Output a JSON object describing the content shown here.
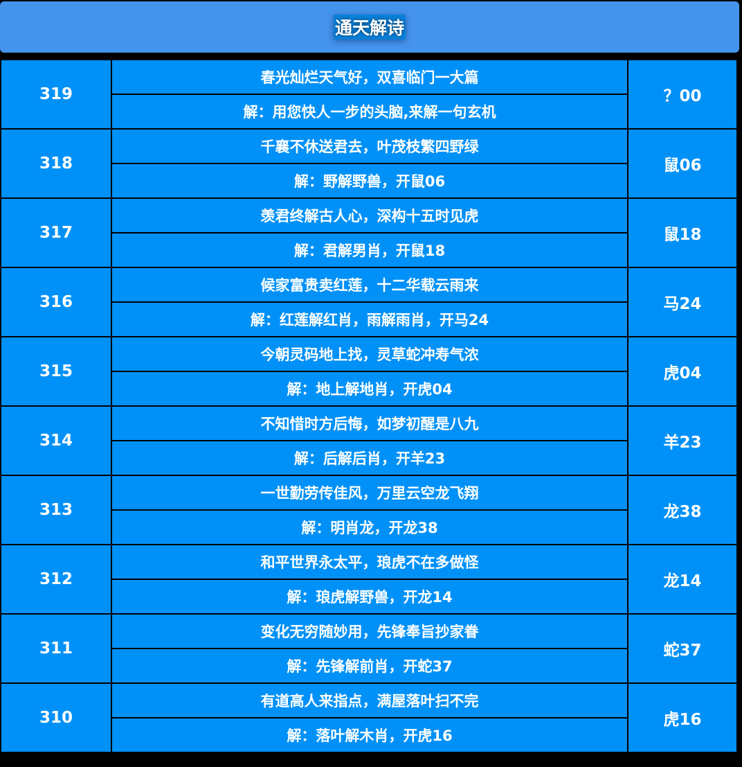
{
  "title": "通天解诗",
  "rows": [
    {
      "issue": "319",
      "poem": "春光灿烂天气好，双喜临门一大篇",
      "solution": "解：用您快人一步的头脑,来解一句玄机",
      "answer": "？00"
    },
    {
      "issue": "318",
      "poem": "千襄不休送君去，叶茂枝繁四野绿",
      "solution": "解：野解野兽，开鼠06",
      "answer": "鼠06"
    },
    {
      "issue": "317",
      "poem": "羡君终解古人心，深构十五时见虎",
      "solution": "解：君解男肖，开鼠18",
      "answer": "鼠18"
    },
    {
      "issue": "316",
      "poem": "候家富贵卖红莲，十二华载云雨来",
      "solution": "解：红莲解红肖，雨解雨肖，开马24",
      "answer": "马24"
    },
    {
      "issue": "315",
      "poem": "今朝灵码地上找，灵草蛇冲寿气浓",
      "solution": "解：地上解地肖，开虎04",
      "answer": "虎04"
    },
    {
      "issue": "314",
      "poem": "不知惜时方后悔，如梦初醒是八九",
      "solution": "解：后解后肖，开羊23",
      "answer": "羊23"
    },
    {
      "issue": "313",
      "poem": "一世勤劳传佳风，万里云空龙飞翔",
      "solution": "解：明肖龙，开龙38",
      "answer": "龙38"
    },
    {
      "issue": "312",
      "poem": "和平世界永太平，琅虎不在多做怪",
      "solution": "解：琅虎解野兽，开龙14",
      "answer": "龙14"
    },
    {
      "issue": "311",
      "poem": "变化无穷随妙用，先锋奉旨抄家眷",
      "solution": "解：先锋解前肖，开蛇37",
      "answer": "蛇37"
    },
    {
      "issue": "310",
      "poem": "有道高人来指点，满屋落叶扫不完",
      "solution": "解：落叶解木肖，开虎16",
      "answer": "虎16"
    }
  ]
}
